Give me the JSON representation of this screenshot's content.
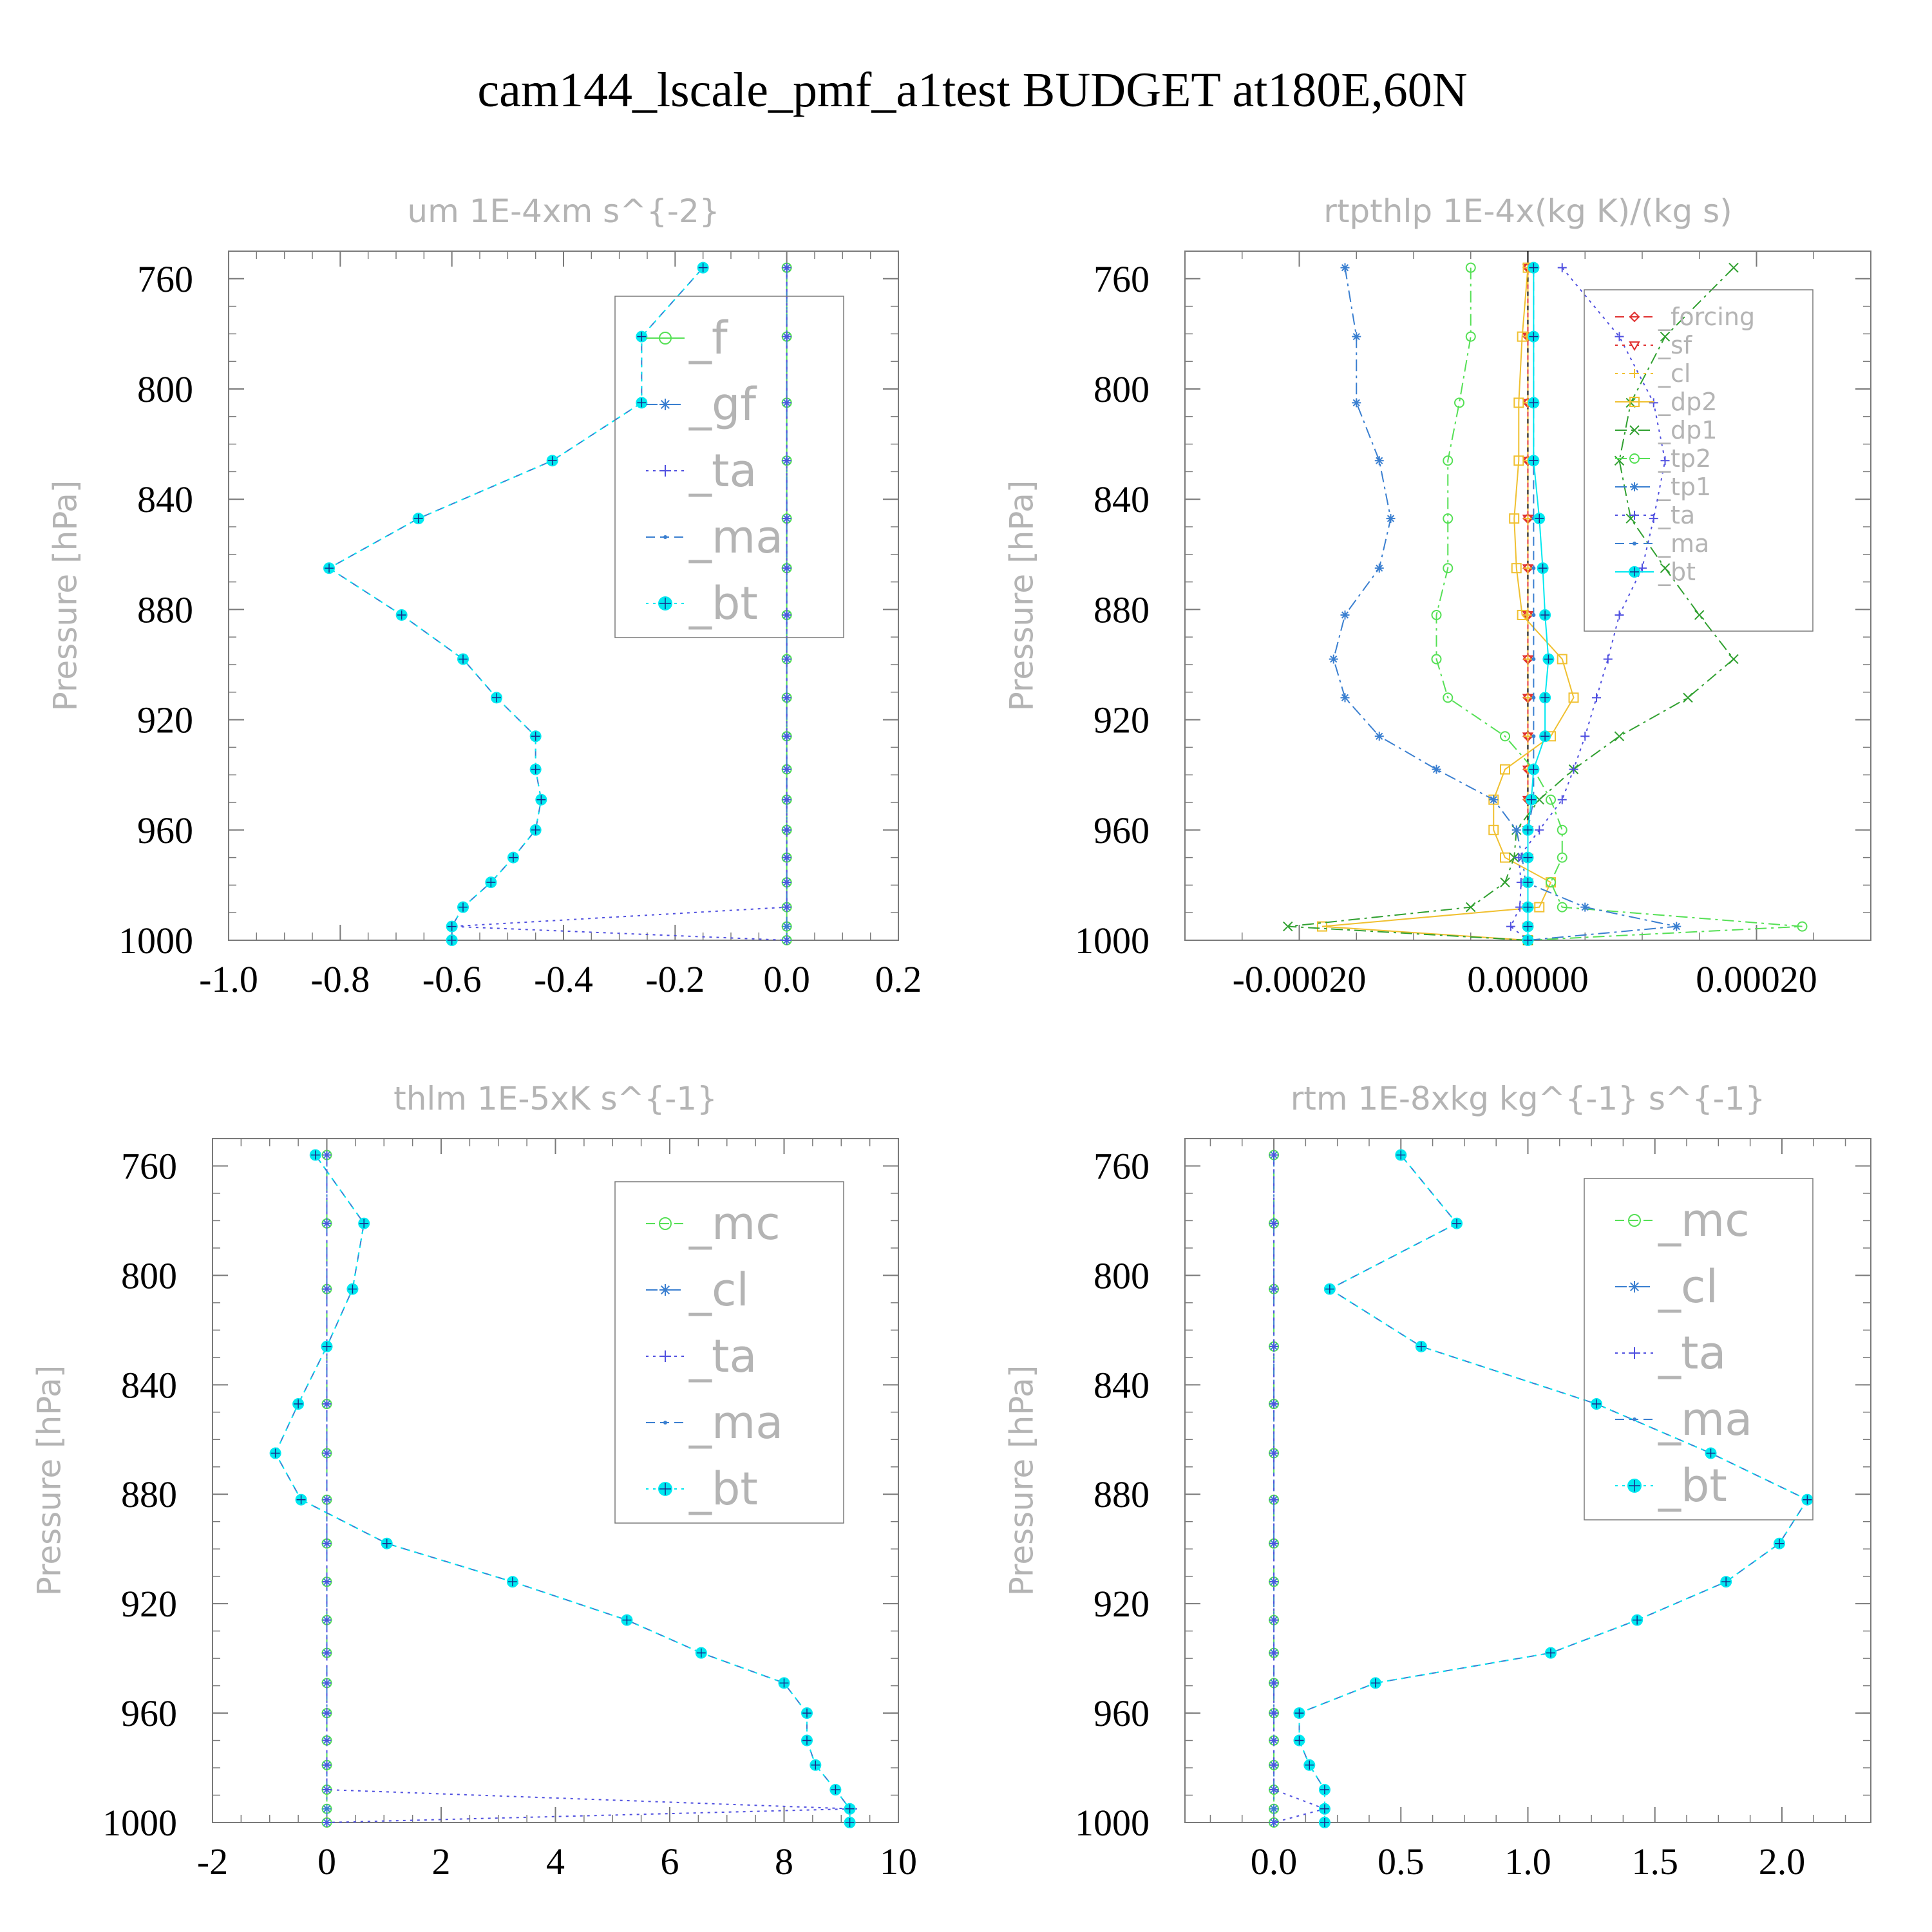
{
  "figure_title": "cam144_lscale_pmf_a1test  BUDGET at180E,60N",
  "colors": {
    "green": "#55e055",
    "blue": "#3a7fd0",
    "purple": "#5050e0",
    "cyan": "#00e8f0",
    "red": "#e03030",
    "orange": "#f0c030",
    "darkgreen": "#30a030",
    "axes_gray": "#7a7a7a",
    "text_gray": "#b4b4b4"
  },
  "chart_data": [
    {
      "type": "line",
      "title": "um   1E-4xm s^{-2}",
      "ylabel": "Pressure [hPa]",
      "xlim": [
        -1.0,
        0.2
      ],
      "ylim": [
        750,
        1000
      ],
      "xticks": [
        "-1.0",
        "-0.8",
        "-0.6",
        "-0.4",
        "-0.2",
        "0.0",
        "0.2"
      ],
      "xtick_values": [
        -1.0,
        -0.8,
        -0.6,
        -0.4,
        -0.2,
        0.0,
        0.2
      ],
      "yticks": [
        "760",
        "800",
        "840",
        "880",
        "920",
        "960",
        "1000"
      ],
      "ytick_values": [
        760,
        800,
        840,
        880,
        920,
        960,
        1000
      ],
      "legend_style": "big",
      "pressure": [
        756,
        781,
        805,
        826,
        847,
        865,
        882,
        898,
        912,
        926,
        938,
        949,
        960,
        970,
        979,
        988,
        995,
        1000
      ],
      "series": [
        {
          "name": "_f",
          "marker": "circle",
          "color": "green",
          "dash": "solid",
          "values": [
            0,
            0,
            0,
            0,
            0,
            0,
            0,
            0,
            0,
            0,
            0,
            0,
            0,
            0,
            0,
            0,
            0,
            0
          ]
        },
        {
          "name": "_gf",
          "marker": "star",
          "color": "blue",
          "dash": "dashdot",
          "values": [
            0,
            0,
            0,
            0,
            0,
            0,
            0,
            0,
            0,
            0,
            0,
            0,
            0,
            0,
            0,
            0,
            0,
            0
          ]
        },
        {
          "name": "_ta",
          "marker": "plus",
          "color": "purple",
          "dash": "dotted",
          "values": [
            0,
            0,
            0,
            0,
            0,
            0,
            0,
            0,
            0,
            0,
            0,
            0,
            0,
            0,
            0,
            0,
            -0.6,
            0
          ]
        },
        {
          "name": "_ma",
          "marker": "dot",
          "color": "blue",
          "dash": "dashed",
          "values": [
            -0.15,
            -0.26,
            -0.26,
            -0.42,
            -0.66,
            -0.82,
            -0.69,
            -0.58,
            -0.52,
            -0.45,
            -0.45,
            -0.44,
            -0.45,
            -0.49,
            -0.53,
            -0.58,
            -0.6,
            -0.6
          ]
        },
        {
          "name": "_bt",
          "marker": "filled",
          "color": "cyan",
          "dash": "dotted",
          "values": [
            -0.15,
            -0.26,
            -0.26,
            -0.42,
            -0.66,
            -0.82,
            -0.69,
            -0.58,
            -0.52,
            -0.45,
            -0.45,
            -0.44,
            -0.45,
            -0.49,
            -0.53,
            -0.58,
            -0.6,
            -0.6
          ]
        }
      ]
    },
    {
      "type": "line",
      "title": "rtpthlp   1E-4x(kg K)/(kg s)",
      "ylabel": "Pressure [hPa]",
      "xlim": [
        -0.0003,
        0.0003
      ],
      "ylim": [
        750,
        1000
      ],
      "xticks": [
        "-0.00020",
        "0.00000",
        "0.00020"
      ],
      "xtick_values": [
        -0.0002,
        0.0,
        0.0002
      ],
      "yticks": [
        "760",
        "800",
        "840",
        "880",
        "920",
        "960",
        "1000"
      ],
      "ytick_values": [
        760,
        800,
        840,
        880,
        920,
        960,
        1000
      ],
      "legend_style": "small",
      "pressure": [
        756,
        781,
        805,
        826,
        847,
        865,
        882,
        898,
        912,
        926,
        938,
        949,
        960,
        970,
        979,
        988,
        995,
        1000
      ],
      "series": [
        {
          "name": "_forcing",
          "marker": "diamond",
          "color": "red",
          "dash": "dashed",
          "values": [
            0,
            0,
            0,
            0,
            0,
            0,
            0,
            0,
            0,
            0,
            0,
            0,
            0,
            0,
            0,
            0,
            0,
            0
          ]
        },
        {
          "name": "_sf",
          "marker": "triangle",
          "color": "red",
          "dash": "dotted",
          "values": [
            0,
            0,
            0,
            0,
            0,
            0,
            0,
            0,
            0,
            0,
            0,
            0,
            0,
            0,
            0,
            0,
            0,
            0
          ]
        },
        {
          "name": "_cl",
          "marker": "plus",
          "color": "orange",
          "dash": "dotted",
          "values": [
            0,
            0,
            0,
            0,
            0,
            0,
            0,
            0,
            0,
            0,
            0,
            0,
            0,
            0,
            0,
            0,
            0,
            0
          ]
        },
        {
          "name": "_dp2",
          "marker": "square",
          "color": "orange",
          "dash": "solid",
          "values": [
            0,
            -5e-06,
            -8e-06,
            -8e-06,
            -1.2e-05,
            -1e-05,
            -5e-06,
            3e-05,
            4e-05,
            2e-05,
            -2e-05,
            -3e-05,
            -3e-05,
            -2e-05,
            2e-05,
            1e-05,
            -0.00018,
            0
          ]
        },
        {
          "name": "_dp1",
          "marker": "x",
          "color": "darkgreen",
          "dash": "dashdot",
          "values": [
            0.00018,
            0.00012,
            9e-05,
            8e-05,
            9e-05,
            0.00012,
            0.00015,
            0.00018,
            0.00014,
            8e-05,
            4e-05,
            1e-05,
            -1e-05,
            -1.2e-05,
            -2e-05,
            -5e-05,
            -0.00021,
            0
          ]
        },
        {
          "name": "_tp2",
          "marker": "circle",
          "color": "green",
          "dash": "dashdot",
          "values": [
            -5e-05,
            -5e-05,
            -6e-05,
            -7e-05,
            -7e-05,
            -7e-05,
            -8e-05,
            -8e-05,
            -7e-05,
            -2e-05,
            5e-06,
            2e-05,
            3e-05,
            3e-05,
            2e-05,
            3e-05,
            0.00024,
            0
          ]
        },
        {
          "name": "_tp1",
          "marker": "star",
          "color": "blue",
          "dash": "dashdot",
          "values": [
            -0.00016,
            -0.00015,
            -0.00015,
            -0.00013,
            -0.00012,
            -0.00013,
            -0.00016,
            -0.00017,
            -0.00016,
            -0.00013,
            -8e-05,
            -3e-05,
            -1e-05,
            -5e-06,
            -2e-06,
            5e-05,
            0.00013,
            0
          ]
        },
        {
          "name": "_ta",
          "marker": "plus",
          "color": "purple",
          "dash": "dotted",
          "values": [
            3e-05,
            8e-05,
            0.00011,
            0.00012,
            0.00011,
            0.0001,
            8e-05,
            7e-05,
            6e-05,
            5e-05,
            4e-05,
            3e-05,
            1e-05,
            -8e-06,
            -6e-06,
            -7e-06,
            -1.5e-05,
            0
          ]
        },
        {
          "name": "_ma",
          "marker": "dot",
          "color": "blue",
          "dash": "dashed",
          "values": [
            5e-06,
            5e-06,
            5e-06,
            5e-06,
            5e-06,
            5e-06,
            5e-06,
            5e-06,
            5e-06,
            5e-06,
            5e-06,
            5e-06,
            0,
            0,
            0,
            0,
            0,
            0
          ]
        },
        {
          "name": "_bt",
          "marker": "filled",
          "color": "cyan",
          "dash": "solid",
          "values": [
            5e-06,
            5e-06,
            5e-06,
            5e-06,
            1e-05,
            1.3e-05,
            1.5e-05,
            1.8e-05,
            1.5e-05,
            1.5e-05,
            5e-06,
            3e-06,
            0,
            0,
            0,
            0,
            0,
            0
          ]
        }
      ]
    },
    {
      "type": "line",
      "title": "thlm   1E-5xK s^{-1}",
      "ylabel": "Pressure [hPa]",
      "xlim": [
        -2,
        10
      ],
      "ylim": [
        750,
        1000
      ],
      "xticks": [
        "-2",
        "0",
        "2",
        "4",
        "6",
        "8",
        "10"
      ],
      "xtick_values": [
        -2,
        0,
        2,
        4,
        6,
        8,
        10
      ],
      "yticks": [
        "760",
        "800",
        "840",
        "880",
        "920",
        "960",
        "1000"
      ],
      "ytick_values": [
        760,
        800,
        840,
        880,
        920,
        960,
        1000
      ],
      "legend_style": "big",
      "pressure": [
        756,
        781,
        805,
        826,
        847,
        865,
        882,
        898,
        912,
        926,
        938,
        949,
        960,
        970,
        979,
        988,
        995,
        1000
      ],
      "series": [
        {
          "name": "_mc",
          "marker": "circle",
          "color": "green",
          "dash": "dashed",
          "values": [
            0,
            0,
            0,
            0,
            0,
            0,
            0,
            0,
            0,
            0,
            0,
            0,
            0,
            0,
            0,
            0,
            0,
            0
          ]
        },
        {
          "name": "_cl",
          "marker": "star",
          "color": "blue",
          "dash": "dashdot",
          "values": [
            0,
            0,
            0,
            0,
            0,
            0,
            0,
            0,
            0,
            0,
            0,
            0,
            0,
            0,
            0,
            0,
            0,
            0
          ]
        },
        {
          "name": "_ta",
          "marker": "plus",
          "color": "purple",
          "dash": "dotted",
          "values": [
            0,
            0,
            0,
            0,
            0,
            0,
            0,
            0,
            0,
            0,
            0,
            0,
            0,
            0,
            0,
            0,
            9.2,
            0
          ]
        },
        {
          "name": "_ma",
          "marker": "dot",
          "color": "blue",
          "dash": "dashed",
          "values": [
            -0.2,
            0.65,
            0.45,
            0,
            -0.5,
            -0.9,
            -0.45,
            1.05,
            3.25,
            5.25,
            6.55,
            8.0,
            8.4,
            8.4,
            8.55,
            8.9,
            9.15,
            9.15
          ]
        },
        {
          "name": "_bt",
          "marker": "filled",
          "color": "cyan",
          "dash": "dotted",
          "values": [
            -0.2,
            0.65,
            0.45,
            0,
            -0.5,
            -0.9,
            -0.45,
            1.05,
            3.25,
            5.25,
            6.55,
            8.0,
            8.4,
            8.4,
            8.55,
            8.9,
            9.15,
            9.15
          ]
        }
      ]
    },
    {
      "type": "line",
      "title": "rtm   1E-8xkg kg^{-1} s^{-1}",
      "ylabel": "Pressure [hPa]",
      "xlim": [
        -0.35,
        2.35
      ],
      "ylim": [
        750,
        1000
      ],
      "xticks": [
        "0.0",
        "0.5",
        "1.0",
        "1.5",
        "2.0"
      ],
      "xtick_values": [
        0.0,
        0.5,
        1.0,
        1.5,
        2.0
      ],
      "yticks": [
        "760",
        "800",
        "840",
        "880",
        "920",
        "960",
        "1000"
      ],
      "ytick_values": [
        760,
        800,
        840,
        880,
        920,
        960,
        1000
      ],
      "legend_style": "big",
      "pressure": [
        756,
        781,
        805,
        826,
        847,
        865,
        882,
        898,
        912,
        926,
        938,
        949,
        960,
        970,
        979,
        988,
        995,
        1000
      ],
      "series": [
        {
          "name": "_mc",
          "marker": "circle",
          "color": "green",
          "dash": "dashed",
          "values": [
            0,
            0,
            0,
            0,
            0,
            0,
            0,
            0,
            0,
            0,
            0,
            0,
            0,
            0,
            0,
            0,
            0,
            0
          ]
        },
        {
          "name": "_cl",
          "marker": "star",
          "color": "blue",
          "dash": "dashdot",
          "values": [
            0,
            0,
            0,
            0,
            0,
            0,
            0,
            0,
            0,
            0,
            0,
            0,
            0,
            0,
            0,
            0,
            0,
            0
          ]
        },
        {
          "name": "_ta",
          "marker": "plus",
          "color": "purple",
          "dash": "dotted",
          "values": [
            0,
            0,
            0,
            0,
            0,
            0,
            0,
            0,
            0,
            0,
            0,
            0,
            0,
            0,
            0,
            0,
            0.2,
            0
          ]
        },
        {
          "name": "_ma",
          "marker": "dot",
          "color": "blue",
          "dash": "dashed",
          "values": [
            0.5,
            0.72,
            0.22,
            0.58,
            1.27,
            1.72,
            2.1,
            1.99,
            1.78,
            1.43,
            1.09,
            0.4,
            0.1,
            0.1,
            0.14,
            0.2,
            0.2,
            0.2
          ]
        },
        {
          "name": "_bt",
          "marker": "filled",
          "color": "cyan",
          "dash": "dotted",
          "values": [
            0.5,
            0.72,
            0.22,
            0.58,
            1.27,
            1.72,
            2.1,
            1.99,
            1.78,
            1.43,
            1.09,
            0.4,
            0.1,
            0.1,
            0.14,
            0.2,
            0.2,
            0.2
          ]
        }
      ]
    }
  ]
}
